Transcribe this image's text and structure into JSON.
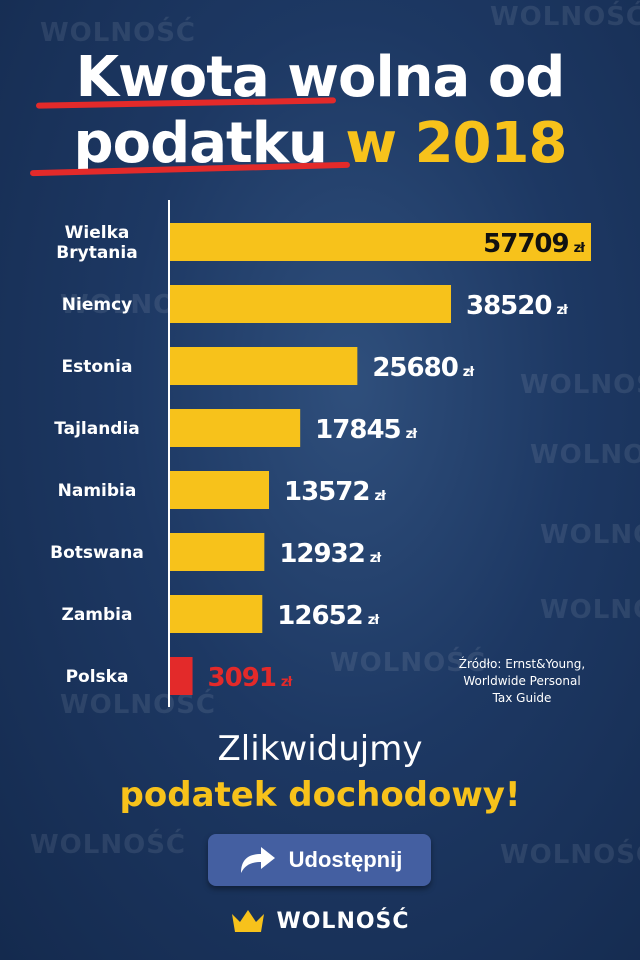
{
  "title": {
    "line1": "Kwota wolna od",
    "line2_white": "podatku",
    "line2_yellow": "w 2018"
  },
  "chart_data": {
    "type": "bar",
    "orientation": "horizontal",
    "categories": [
      "Wielka\nBrytania",
      "Niemcy",
      "Estonia",
      "Tajlandia",
      "Namibia",
      "Botswana",
      "Zambia",
      "Polska"
    ],
    "values": [
      57709,
      38520,
      25680,
      17845,
      13572,
      12932,
      12652,
      3091
    ],
    "unit": "zł",
    "highlight_category": "Polska",
    "colors": {
      "bar": "#f7c21b",
      "highlight": "#e32a2a",
      "label": "#ffffff",
      "highlight_label": "#e32a2a"
    }
  },
  "source": {
    "line1": "Źródło: Ernst&Young,",
    "line2": "Worldwide Personal",
    "line3": "Tax Guide"
  },
  "slogan": {
    "line1": "Zlikwidujmy",
    "line2": "podatek dochodowy!"
  },
  "share_button": {
    "label": "Udostępnij",
    "icon": "share-arrow-icon"
  },
  "brand": {
    "name": "WOLNOŚĆ",
    "icon": "crown-icon"
  },
  "watermark": "WOLNOŚĆ",
  "colors": {
    "background": "#1d3863",
    "accent": "#f7c21b",
    "alert": "#e32a2a",
    "button": "#445fa1"
  }
}
